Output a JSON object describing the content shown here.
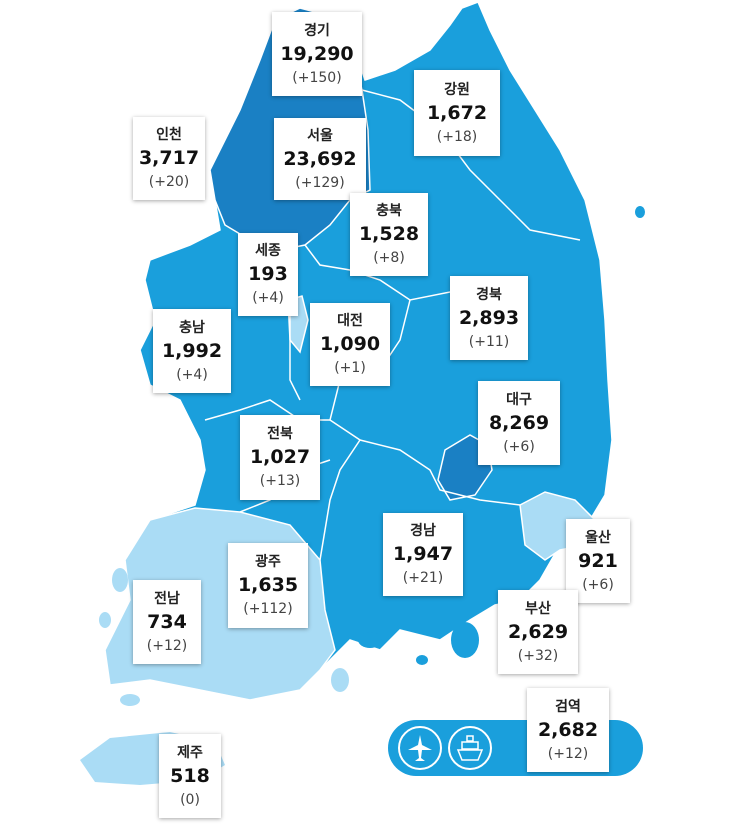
{
  "regions": [
    {
      "name": "경기",
      "count": "19,290",
      "change": "(+150)"
    },
    {
      "name": "강원",
      "count": "1,672",
      "change": "(+18)"
    },
    {
      "name": "인천",
      "count": "3,717",
      "change": "(+20)"
    },
    {
      "name": "서울",
      "count": "23,692",
      "change": "(+129)"
    },
    {
      "name": "충북",
      "count": "1,528",
      "change": "(+8)"
    },
    {
      "name": "세종",
      "count": "193",
      "change": "(+4)"
    },
    {
      "name": "경북",
      "count": "2,893",
      "change": "(+11)"
    },
    {
      "name": "대전",
      "count": "1,090",
      "change": "(+1)"
    },
    {
      "name": "충남",
      "count": "1,992",
      "change": "(+4)"
    },
    {
      "name": "대구",
      "count": "8,269",
      "change": "(+6)"
    },
    {
      "name": "전북",
      "count": "1,027",
      "change": "(+13)"
    },
    {
      "name": "경남",
      "count": "1,947",
      "change": "(+21)"
    },
    {
      "name": "울산",
      "count": "921",
      "change": "(+6)"
    },
    {
      "name": "광주",
      "count": "1,635",
      "change": "(+112)"
    },
    {
      "name": "부산",
      "count": "2,629",
      "change": "(+32)"
    },
    {
      "name": "전남",
      "count": "734",
      "change": "(+12)"
    },
    {
      "name": "검역",
      "count": "2,682",
      "change": "(+12)"
    },
    {
      "name": "제주",
      "count": "518",
      "change": "(0)"
    }
  ]
}
